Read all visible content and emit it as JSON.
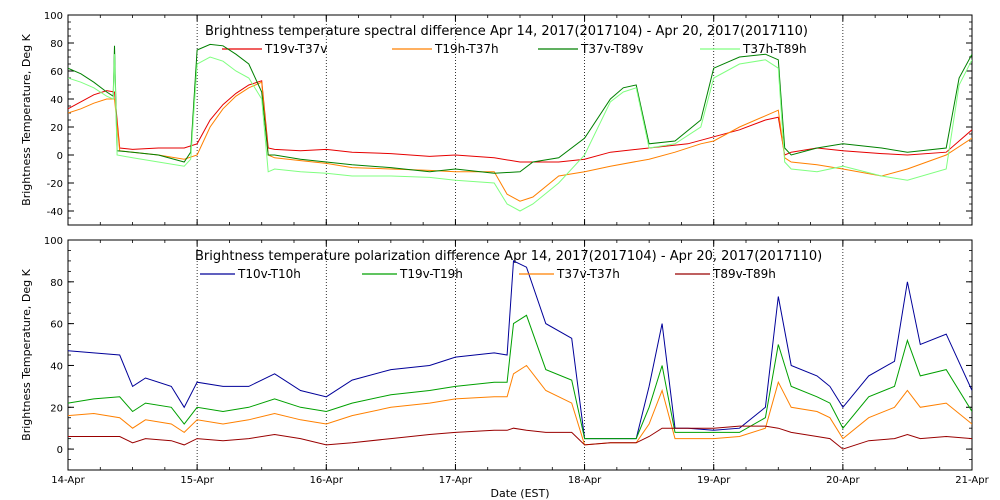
{
  "chart_data": [
    {
      "type": "line",
      "title": "Brightness temperature spectral difference     Apr 14, 2017(2017104) - Apr 20, 2017(2017110)",
      "xlabel": "",
      "ylabel": "Brightness Temperature, Deg K",
      "xlim": [
        "2017-04-14",
        "2017-04-21"
      ],
      "ylim": [
        -50,
        100
      ],
      "yticks": [
        -40,
        -20,
        0,
        20,
        40,
        60,
        80,
        100
      ],
      "xticks": [
        "14-Apr",
        "15-Apr",
        "16-Apr",
        "17-Apr",
        "18-Apr",
        "19-Apr",
        "20-Apr",
        "21-Apr"
      ],
      "grid": "vertical dotted at day boundaries",
      "legend": "top",
      "series": [
        {
          "name": "T19v-T37v",
          "color": "#e60000",
          "x": [
            0.0,
            0.1,
            0.2,
            0.3,
            0.36,
            0.4,
            0.5,
            0.7,
            0.9,
            1.0,
            1.1,
            1.2,
            1.3,
            1.4,
            1.5,
            1.55,
            1.6,
            1.8,
            2.0,
            2.2,
            2.5,
            2.8,
            3.0,
            3.3,
            3.5,
            3.8,
            4.0,
            4.2,
            4.5,
            4.8,
            5.0,
            5.2,
            5.4,
            5.5,
            5.55,
            5.6,
            5.8,
            6.0,
            6.3,
            6.5,
            6.8,
            7.0
          ],
          "y": [
            33,
            38,
            43,
            46,
            45,
            5,
            4,
            5,
            5,
            8,
            25,
            36,
            44,
            50,
            53,
            5,
            4,
            3,
            4,
            2,
            1,
            -1,
            0,
            -2,
            -5,
            -5,
            -3,
            2,
            5,
            8,
            13,
            18,
            25,
            27,
            0,
            2,
            5,
            3,
            1,
            0,
            2,
            18
          ]
        },
        {
          "name": "T19h-T37h",
          "color": "#ff8000",
          "x": [
            0.0,
            0.1,
            0.2,
            0.3,
            0.36,
            0.4,
            0.5,
            0.7,
            0.9,
            1.0,
            1.1,
            1.2,
            1.3,
            1.4,
            1.5,
            1.55,
            1.6,
            1.8,
            2.0,
            2.2,
            2.5,
            2.8,
            3.0,
            3.3,
            3.4,
            3.5,
            3.6,
            3.8,
            4.0,
            4.2,
            4.5,
            4.7,
            4.9,
            5.0,
            5.2,
            5.4,
            5.5,
            5.55,
            5.6,
            5.8,
            6.0,
            6.3,
            6.5,
            6.8,
            7.0
          ],
          "y": [
            30,
            33,
            37,
            40,
            40,
            3,
            2,
            0,
            -3,
            0,
            20,
            33,
            42,
            48,
            52,
            0,
            -2,
            -4,
            -6,
            -9,
            -10,
            -11,
            -12,
            -12,
            -28,
            -33,
            -30,
            -15,
            -12,
            -8,
            -3,
            2,
            8,
            10,
            20,
            28,
            32,
            -2,
            -5,
            -7,
            -10,
            -15,
            -10,
            0,
            12
          ]
        },
        {
          "name": "T37v-T89v",
          "color": "#008000",
          "x": [
            0.0,
            0.1,
            0.2,
            0.3,
            0.35,
            0.36,
            0.38,
            0.5,
            0.7,
            0.9,
            0.95,
            1.0,
            1.1,
            1.2,
            1.3,
            1.4,
            1.5,
            1.55,
            1.6,
            1.8,
            2.0,
            2.2,
            2.5,
            2.8,
            3.0,
            3.3,
            3.5,
            3.6,
            3.8,
            4.0,
            4.2,
            4.3,
            4.4,
            4.5,
            4.7,
            4.9,
            5.0,
            5.2,
            5.4,
            5.5,
            5.55,
            5.6,
            5.8,
            6.0,
            6.3,
            6.5,
            6.8,
            6.9,
            7.0
          ],
          "y": [
            62,
            58,
            52,
            45,
            42,
            78,
            3,
            2,
            0,
            -5,
            2,
            75,
            79,
            78,
            72,
            65,
            45,
            0,
            0,
            -3,
            -5,
            -7,
            -9,
            -12,
            -10,
            -13,
            -12,
            -5,
            -2,
            12,
            40,
            48,
            50,
            8,
            10,
            25,
            62,
            70,
            72,
            68,
            5,
            0,
            5,
            8,
            5,
            2,
            5,
            55,
            72
          ]
        },
        {
          "name": "T37h-T89h",
          "color": "#80ff80",
          "x": [
            0.0,
            0.1,
            0.2,
            0.3,
            0.35,
            0.36,
            0.38,
            0.5,
            0.7,
            0.9,
            0.95,
            1.0,
            1.1,
            1.2,
            1.3,
            1.4,
            1.5,
            1.55,
            1.6,
            1.8,
            2.0,
            2.2,
            2.5,
            2.8,
            3.0,
            3.3,
            3.4,
            3.5,
            3.6,
            3.8,
            4.0,
            4.2,
            4.3,
            4.4,
            4.5,
            4.7,
            4.9,
            5.0,
            5.2,
            5.4,
            5.5,
            5.55,
            5.6,
            5.8,
            6.0,
            6.3,
            6.5,
            6.8,
            6.9,
            7.0
          ],
          "y": [
            55,
            52,
            48,
            42,
            40,
            72,
            0,
            -2,
            -5,
            -8,
            -3,
            65,
            70,
            67,
            60,
            55,
            40,
            -12,
            -10,
            -12,
            -13,
            -15,
            -15,
            -16,
            -18,
            -20,
            -35,
            -40,
            -35,
            -20,
            0,
            38,
            45,
            48,
            5,
            8,
            20,
            55,
            65,
            68,
            62,
            -5,
            -10,
            -12,
            -8,
            -15,
            -18,
            -10,
            50,
            68
          ]
        }
      ]
    },
    {
      "type": "line",
      "title": "Brightness temperature polarization difference     Apr 14, 2017(2017104) - Apr 20, 2017(2017110)",
      "xlabel": "Date (EST)",
      "ylabel": "Brightness Temperature, Deg K",
      "xlim": [
        "2017-04-14",
        "2017-04-21"
      ],
      "ylim": [
        -10,
        100
      ],
      "yticks": [
        0,
        20,
        40,
        60,
        80,
        100
      ],
      "xticks": [
        "14-Apr",
        "15-Apr",
        "16-Apr",
        "17-Apr",
        "18-Apr",
        "19-Apr",
        "20-Apr",
        "21-Apr"
      ],
      "grid": "vertical dotted at day boundaries",
      "legend": "top",
      "series": [
        {
          "name": "T10v-T10h",
          "color": "#000099",
          "x": [
            0.0,
            0.2,
            0.4,
            0.5,
            0.6,
            0.8,
            0.9,
            1.0,
            1.2,
            1.4,
            1.6,
            1.8,
            2.0,
            2.2,
            2.5,
            2.8,
            3.0,
            3.3,
            3.4,
            3.45,
            3.55,
            3.7,
            3.9,
            4.0,
            4.2,
            4.4,
            4.5,
            4.6,
            4.7,
            4.8,
            5.0,
            5.2,
            5.4,
            5.5,
            5.6,
            5.8,
            5.9,
            6.0,
            6.2,
            6.4,
            6.5,
            6.6,
            6.8,
            7.0
          ],
          "y": [
            47,
            46,
            45,
            30,
            34,
            30,
            20,
            32,
            30,
            30,
            36,
            28,
            25,
            33,
            38,
            40,
            44,
            46,
            45,
            90,
            87,
            60,
            53,
            5,
            5,
            5,
            30,
            60,
            10,
            10,
            9,
            10,
            20,
            73,
            40,
            35,
            30,
            20,
            35,
            42,
            80,
            50,
            55,
            28
          ]
        },
        {
          "name": "T19v-T19h",
          "color": "#00a000",
          "x": [
            0.0,
            0.2,
            0.4,
            0.5,
            0.6,
            0.8,
            0.9,
            1.0,
            1.2,
            1.4,
            1.6,
            1.8,
            2.0,
            2.2,
            2.5,
            2.8,
            3.0,
            3.3,
            3.4,
            3.45,
            3.55,
            3.7,
            3.9,
            4.0,
            4.2,
            4.4,
            4.5,
            4.6,
            4.7,
            4.8,
            5.0,
            5.2,
            5.4,
            5.5,
            5.6,
            5.8,
            5.9,
            6.0,
            6.2,
            6.4,
            6.5,
            6.6,
            6.8,
            7.0
          ],
          "y": [
            22,
            24,
            25,
            18,
            22,
            20,
            12,
            20,
            18,
            20,
            24,
            20,
            18,
            22,
            26,
            28,
            30,
            32,
            32,
            60,
            64,
            38,
            33,
            5,
            5,
            5,
            20,
            40,
            8,
            8,
            8,
            8,
            15,
            50,
            30,
            25,
            22,
            10,
            25,
            30,
            52,
            35,
            38,
            18
          ]
        },
        {
          "name": "T37v-T37h",
          "color": "#ff8000",
          "x": [
            0.0,
            0.2,
            0.4,
            0.5,
            0.6,
            0.8,
            0.9,
            1.0,
            1.2,
            1.4,
            1.6,
            1.8,
            2.0,
            2.2,
            2.5,
            2.8,
            3.0,
            3.3,
            3.4,
            3.45,
            3.55,
            3.7,
            3.9,
            4.0,
            4.2,
            4.4,
            4.5,
            4.6,
            4.7,
            4.8,
            5.0,
            5.2,
            5.4,
            5.5,
            5.6,
            5.8,
            5.9,
            6.0,
            6.2,
            6.4,
            6.5,
            6.6,
            6.8,
            7.0
          ],
          "y": [
            16,
            17,
            15,
            10,
            14,
            12,
            8,
            14,
            12,
            14,
            17,
            14,
            12,
            16,
            20,
            22,
            24,
            25,
            25,
            36,
            40,
            28,
            22,
            2,
            3,
            3,
            12,
            28,
            5,
            5,
            5,
            6,
            10,
            32,
            20,
            18,
            15,
            5,
            15,
            20,
            28,
            20,
            22,
            12
          ]
        },
        {
          "name": "T89v-T89h",
          "color": "#990000",
          "x": [
            0.0,
            0.2,
            0.4,
            0.5,
            0.6,
            0.8,
            0.9,
            1.0,
            1.2,
            1.4,
            1.6,
            1.8,
            2.0,
            2.2,
            2.5,
            2.8,
            3.0,
            3.3,
            3.4,
            3.45,
            3.55,
            3.7,
            3.9,
            4.0,
            4.2,
            4.4,
            4.5,
            4.6,
            4.7,
            4.8,
            5.0,
            5.2,
            5.4,
            5.5,
            5.6,
            5.8,
            5.9,
            6.0,
            6.2,
            6.4,
            6.5,
            6.6,
            6.8,
            7.0
          ],
          "y": [
            6,
            6,
            6,
            3,
            5,
            4,
            2,
            5,
            4,
            5,
            7,
            5,
            2,
            3,
            5,
            7,
            8,
            9,
            9,
            10,
            9,
            8,
            8,
            2,
            3,
            3,
            6,
            10,
            10,
            10,
            10,
            11,
            11,
            10,
            8,
            6,
            5,
            0,
            4,
            5,
            7,
            5,
            6,
            5
          ]
        }
      ]
    }
  ]
}
